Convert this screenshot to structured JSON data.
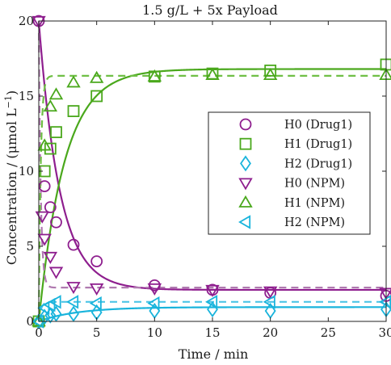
{
  "chart_data": {
    "type": "scatter",
    "title": "1.5 g/L + 5x Payload",
    "xlabel": "Time / min",
    "ylabel": "Concentration / (μmol L⁻¹)",
    "xlim": [
      0,
      30
    ],
    "ylim": [
      0,
      20
    ],
    "x_ticks": [
      0,
      5,
      10,
      15,
      20,
      25,
      30
    ],
    "y_ticks": [
      0,
      5,
      10,
      15,
      20
    ],
    "grid": false,
    "legend_position": "center-right",
    "colors": {
      "purple": "#8e1e8e",
      "purple_light": "#b07ab0",
      "green": "#4aa81c",
      "green_light": "#6fbf45",
      "cyan": "#19b4dc",
      "cyan_light": "#4ec5e6"
    },
    "series": [
      {
        "name": "H0 (Drug1)",
        "marker": "circle",
        "color": "#8e1e8e",
        "points": [
          [
            0,
            20
          ],
          [
            0.5,
            9
          ],
          [
            1,
            7.6
          ],
          [
            1.5,
            6.6
          ],
          [
            3,
            5.1
          ],
          [
            5,
            4
          ],
          [
            10,
            2.4
          ],
          [
            15,
            2.1
          ],
          [
            20,
            1.9
          ],
          [
            30,
            1.7
          ]
        ]
      },
      {
        "name": "H1 (Drug1)",
        "marker": "square",
        "color": "#4aa81c",
        "points": [
          [
            0,
            0
          ],
          [
            0.5,
            10
          ],
          [
            1,
            11.5
          ],
          [
            1.5,
            12.6
          ],
          [
            3,
            14
          ],
          [
            5,
            15
          ],
          [
            10,
            16.3
          ],
          [
            15,
            16.5
          ],
          [
            20,
            16.7
          ],
          [
            30,
            17.1
          ]
        ]
      },
      {
        "name": "H2 (Drug1)",
        "marker": "diamond",
        "color": "#19b4dc",
        "points": [
          [
            0,
            0
          ],
          [
            0.5,
            0.3
          ],
          [
            1,
            0.4
          ],
          [
            1.5,
            0.5
          ],
          [
            3,
            0.5
          ],
          [
            5,
            0.6
          ],
          [
            10,
            0.7
          ],
          [
            15,
            0.8
          ],
          [
            20,
            0.7
          ],
          [
            30,
            0.8
          ]
        ]
      },
      {
        "name": "H0 (NPM)",
        "marker": "triangle-down",
        "color": "#8e1e8e",
        "points": [
          [
            0,
            20
          ],
          [
            0.3,
            7
          ],
          [
            0.5,
            5.5
          ],
          [
            1,
            4.3
          ],
          [
            1.5,
            3.3
          ],
          [
            3,
            2.3
          ],
          [
            5,
            2.2
          ],
          [
            10,
            2.2
          ],
          [
            15,
            2.1
          ],
          [
            20,
            2
          ],
          [
            30,
            1.9
          ]
        ]
      },
      {
        "name": "H1 (NPM)",
        "marker": "triangle-up",
        "color": "#4aa81c",
        "points": [
          [
            0,
            0
          ],
          [
            0.5,
            11.7
          ],
          [
            1,
            14.3
          ],
          [
            1.5,
            15.1
          ],
          [
            3,
            15.9
          ],
          [
            5,
            16.2
          ],
          [
            10,
            16.3
          ],
          [
            15,
            16.4
          ],
          [
            20,
            16.4
          ],
          [
            30,
            16.4
          ]
        ]
      },
      {
        "name": "H2 (NPM)",
        "marker": "triangle-left",
        "color": "#19b4dc",
        "points": [
          [
            0,
            0
          ],
          [
            0.5,
            0.9
          ],
          [
            1,
            1.1
          ],
          [
            1.5,
            1.3
          ],
          [
            3,
            1.3
          ],
          [
            5,
            1.2
          ],
          [
            10,
            1.2
          ],
          [
            15,
            1.3
          ],
          [
            20,
            1.3
          ],
          [
            30,
            1.3
          ]
        ]
      }
    ],
    "fit_curves": [
      {
        "color": "#8e1e8e",
        "style": "solid",
        "initial": 20,
        "final": 2.1,
        "rate": 0.55
      },
      {
        "color": "#4aa81c",
        "style": "solid",
        "initial": 0,
        "final": 16.8,
        "rate": 0.45
      },
      {
        "color": "#19b4dc",
        "style": "solid",
        "initial": 0,
        "final": 0.95,
        "rate": 0.3
      },
      {
        "color": "#b07ab0",
        "style": "dashed",
        "initial": 20,
        "final": 2.25,
        "rate": 6
      },
      {
        "color": "#6fbf45",
        "style": "dashed",
        "initial": 0,
        "final": 16.35,
        "rate": 6
      },
      {
        "color": "#4ec5e6",
        "style": "dashed",
        "initial": 0,
        "final": 1.3,
        "rate": 5
      }
    ]
  }
}
